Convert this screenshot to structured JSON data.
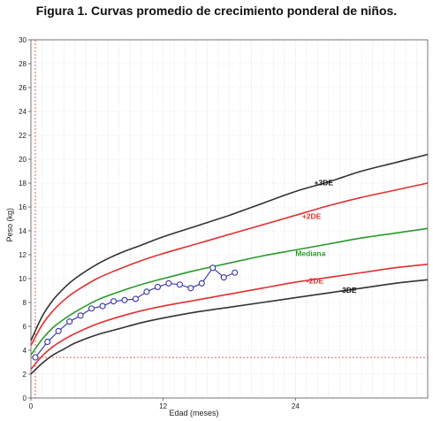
{
  "header": {
    "title": "Figura 1. Curvas promedio de  crecimiento ponderal de niños."
  },
  "chart_data": {
    "type": "line",
    "title": "Figura 1. Curvas promedio de  crecimiento ponderal de niños.",
    "xlabel": "Edad (meses)",
    "ylabel": "Peso (kg)",
    "xlim": [
      0,
      36
    ],
    "ylim": [
      0,
      30
    ],
    "x_ticks": [
      0,
      12,
      24
    ],
    "y_ticks": [
      0,
      2,
      4,
      6,
      8,
      10,
      12,
      14,
      16,
      18,
      20,
      22,
      24,
      26,
      28,
      30
    ],
    "grid": "dotted",
    "x": [
      0,
      1,
      2,
      3,
      4,
      6,
      8,
      10,
      12,
      15,
      18,
      21,
      24,
      27,
      30,
      33,
      36
    ],
    "series": [
      {
        "name": "+3DE",
        "color": "#333333",
        "label_at": [
          25.7,
          17.8
        ],
        "values": [
          4.8,
          6.8,
          8.2,
          9.2,
          10.0,
          11.2,
          12.1,
          12.8,
          13.5,
          14.4,
          15.3,
          16.3,
          17.3,
          18.1,
          19.0,
          19.7,
          20.4
        ]
      },
      {
        "name": "+2DE",
        "color": "#e03030",
        "label_at": [
          24.6,
          15.0
        ],
        "values": [
          4.4,
          6.1,
          7.3,
          8.2,
          8.9,
          10.0,
          10.8,
          11.5,
          12.1,
          12.9,
          13.7,
          14.5,
          15.3,
          16.1,
          16.8,
          17.4,
          18.0
        ]
      },
      {
        "name": "Mediana",
        "color": "#2a9a2a",
        "label_at": [
          24.0,
          11.9
        ],
        "values": [
          3.6,
          4.9,
          5.9,
          6.6,
          7.2,
          8.2,
          8.9,
          9.5,
          10.0,
          10.7,
          11.3,
          11.9,
          12.4,
          12.9,
          13.4,
          13.8,
          14.2
        ]
      },
      {
        "name": "-2DE",
        "color": "#e03030",
        "label_at": [
          25.0,
          9.6
        ],
        "values": [
          2.4,
          3.5,
          4.3,
          4.9,
          5.4,
          6.2,
          6.8,
          7.3,
          7.7,
          8.2,
          8.7,
          9.2,
          9.7,
          10.1,
          10.5,
          10.9,
          11.2
        ]
      },
      {
        "name": "-3DE",
        "color": "#333333",
        "label_at": [
          28.0,
          8.8
        ],
        "values": [
          2.0,
          2.9,
          3.6,
          4.1,
          4.6,
          5.3,
          5.8,
          6.3,
          6.7,
          7.2,
          7.6,
          8.0,
          8.4,
          8.8,
          9.2,
          9.6,
          9.9
        ]
      }
    ],
    "patient": {
      "color": "#3333aa",
      "x": [
        0.4,
        1.5,
        2.5,
        3.5,
        4.5,
        5.5,
        6.5,
        7.5,
        8.5,
        9.5,
        10.5,
        11.5,
        12.5,
        13.5,
        14.5,
        15.5,
        16.5,
        17.5,
        18.5
      ],
      "y": [
        3.4,
        4.7,
        5.6,
        6.4,
        6.9,
        7.5,
        7.7,
        8.1,
        8.2,
        8.3,
        8.9,
        9.3,
        9.6,
        9.5,
        9.2,
        9.6,
        10.9,
        10.1,
        10.5
      ]
    }
  }
}
